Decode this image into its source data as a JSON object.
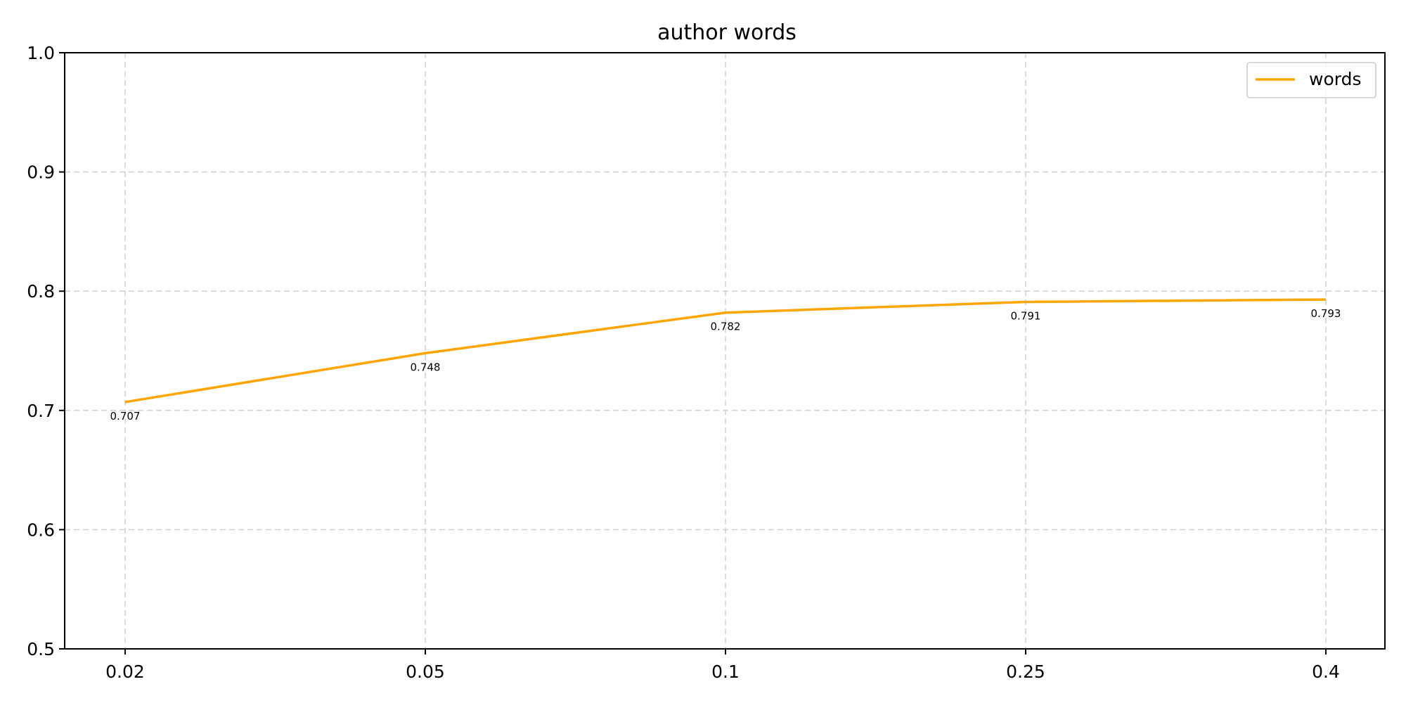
{
  "chart_data": {
    "type": "line",
    "title": "author words",
    "xlabel": "",
    "ylabel": "",
    "categories": [
      "0.02",
      "0.05",
      "0.1",
      "0.25",
      "0.4"
    ],
    "series": [
      {
        "name": "words",
        "color": "#FFA500",
        "values": [
          0.707,
          0.748,
          0.782,
          0.791,
          0.793
        ],
        "labels": [
          "0.707",
          "0.748",
          "0.782",
          "0.791",
          "0.793"
        ]
      }
    ],
    "ylim": [
      0.5,
      1.0
    ],
    "yticks": [
      "0.5",
      "0.6",
      "0.7",
      "0.8",
      "0.9",
      "1.0"
    ],
    "grid": true,
    "legend_position": "top-right"
  }
}
